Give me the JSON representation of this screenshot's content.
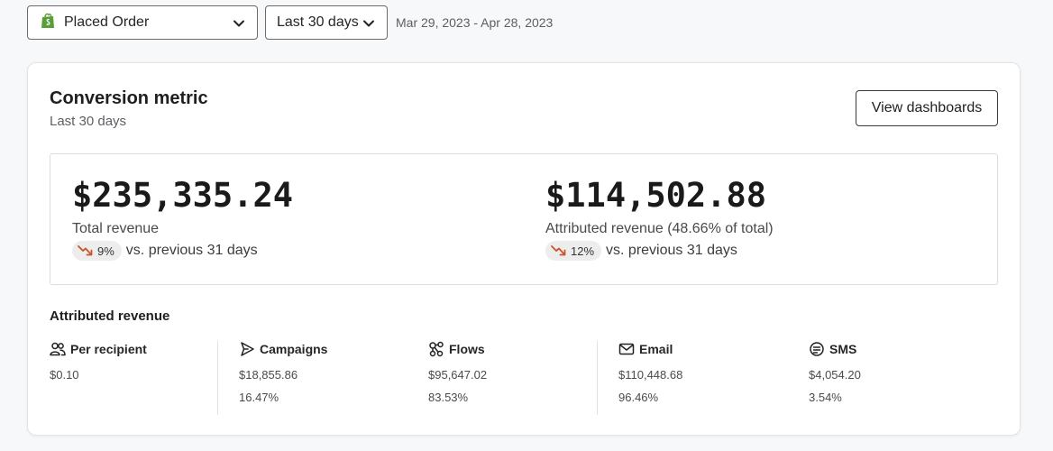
{
  "toolbar": {
    "metric_select": {
      "label": "Placed Order",
      "icon": "shopify-bag-icon",
      "icon_color": "#5a9e3a"
    },
    "range_select": {
      "label": "Last 30 days"
    },
    "date_range": "Mar 29, 2023 - Apr 28, 2023"
  },
  "card": {
    "title": "Conversion metric",
    "subtitle": "Last 30 days",
    "view_button": "View dashboards"
  },
  "summary": {
    "total": {
      "value": "$235,335.24",
      "label": "Total revenue",
      "change": "9%",
      "trend": "down",
      "comparison": "vs. previous 31 days"
    },
    "attributed": {
      "value": "$114,502.88",
      "label": "Attributed revenue (48.66% of total)",
      "change": "12%",
      "trend": "down",
      "comparison": "vs. previous 31 days"
    },
    "trend_color": "#c8552b"
  },
  "attributed_revenue": {
    "title": "Attributed revenue",
    "columns": [
      {
        "label": "Per recipient",
        "icon": "people-icon",
        "value": "$0.10",
        "percent": ""
      },
      {
        "label": "Campaigns",
        "icon": "send-icon",
        "value": "$18,855.86",
        "percent": "16.47%"
      },
      {
        "label": "Flows",
        "icon": "flow-icon",
        "value": "$95,647.02",
        "percent": "83.53%"
      },
      {
        "label": "Email",
        "icon": "email-icon",
        "value": "$110,448.68",
        "percent": "96.46%"
      },
      {
        "label": "SMS",
        "icon": "sms-icon",
        "value": "$4,054.20",
        "percent": "3.54%"
      }
    ]
  }
}
